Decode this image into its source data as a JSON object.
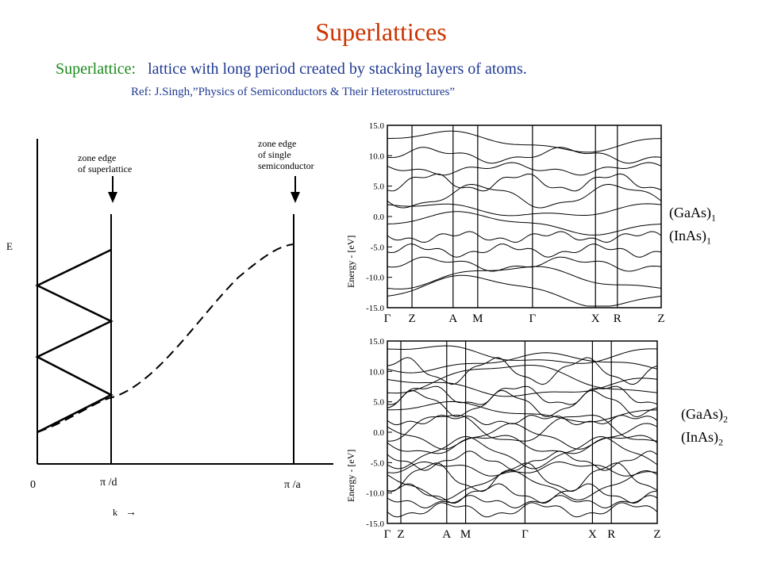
{
  "slide": {
    "title": "Superlattices",
    "definition_term": "Superlattice",
    "definition_colon": ":",
    "definition_text": "lattice with long period created by stacking  layers of atoms.",
    "reference": "Ref:  J.Singh,”Physics of Semiconductors & Their Heterostructures”"
  },
  "schematic": {
    "y_axis_label": "E",
    "x_axis_label": "k",
    "x_arrow": "→",
    "origin_label": "0",
    "tick_pi_d": "π /d",
    "tick_pi_a": "π /a",
    "annot_superlattice_line1": "zone edge",
    "annot_superlattice_line2": "of superlattice",
    "annot_single_line1": "zone edge",
    "annot_single_line2": "of single",
    "annot_single_line3": "semiconductor"
  },
  "band_plot_top": {
    "y_axis_label": "Energy - [eV]",
    "y_ticks": [
      "15.0",
      "10.0",
      "5.0",
      "0.0",
      "-5.0",
      "-10.0",
      "-15.0"
    ],
    "k_points": [
      "Γ",
      "Z",
      "A",
      "M",
      "Γ",
      "X",
      "R",
      "Z"
    ],
    "compound_a": "(GaAs)",
    "compound_a_sub": "1",
    "compound_b": "(InAs)",
    "compound_b_sub": "1"
  },
  "band_plot_bottom": {
    "y_axis_label": "Energy - [eV]",
    "y_ticks": [
      "15.0",
      "10.0",
      "5.0",
      "0.0",
      "-5.0",
      "-10.0",
      "-15.0"
    ],
    "k_points": [
      "Γ",
      "Z",
      "A",
      "M",
      "Γ",
      "X",
      "R",
      "Z"
    ],
    "compound_a": "(GaAs)",
    "compound_a_sub": "2",
    "compound_b": "(InAs)",
    "compound_b_sub": "2"
  },
  "colors": {
    "title": "#cc3300",
    "term": "#1b8a1b",
    "definition": "#1f3a93"
  }
}
